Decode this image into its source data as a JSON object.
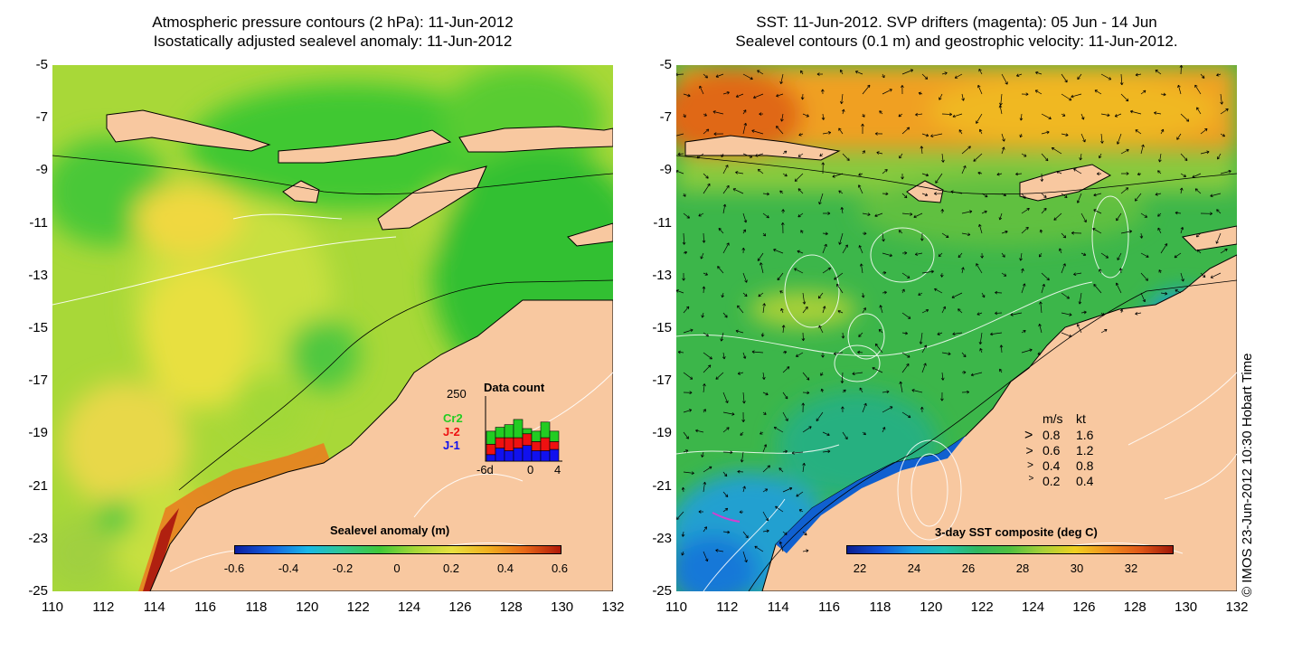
{
  "titles": {
    "left_line1": "Atmospheric pressure contours (2 hPa): 11-Jun-2012",
    "left_line2": "Isostatically adjusted sealevel anomaly: 11-Jun-2012",
    "right_line1": "SST: 11-Jun-2012. SVP drifters (magenta): 05 Jun - 14 Jun",
    "right_line2": "Sealevel contours (0.1 m) and geostrophic velocity: 11-Jun-2012."
  },
  "axes": {
    "y_ticks": [
      "-5",
      "-7",
      "-9",
      "-11",
      "-13",
      "-15",
      "-17",
      "-19",
      "-21",
      "-23",
      "-25"
    ],
    "x_ticks": [
      "110",
      "112",
      "114",
      "116",
      "118",
      "120",
      "122",
      "124",
      "126",
      "128",
      "130",
      "132"
    ],
    "lon_range": [
      110,
      132
    ],
    "lat_range": [
      -25,
      -5
    ]
  },
  "left_colorbar": {
    "title": "Sealevel anomaly (m)",
    "ticks": [
      "-0.6",
      "-0.4",
      "-0.2",
      "0",
      "0.2",
      "0.4",
      "0.6"
    ],
    "range": [
      -0.6,
      0.6
    ]
  },
  "right_colorbar": {
    "title": "3-day SST composite (deg C)",
    "ticks": [
      "22",
      "24",
      "26",
      "28",
      "30",
      "32"
    ],
    "range": [
      21.5,
      33.5
    ]
  },
  "data_count_inset": {
    "title": "Data count",
    "y_max_label": "250",
    "x_labels": [
      "-6d",
      "0",
      "4"
    ],
    "missions": [
      {
        "name": "Cr2",
        "color": "#22cc22"
      },
      {
        "name": "J-2",
        "color": "#ee1111"
      },
      {
        "name": "J-1",
        "color": "#1111ee"
      }
    ],
    "bars": [
      {
        "j1": 25,
        "j2": 40,
        "cr2": 50
      },
      {
        "j1": 50,
        "j2": 40,
        "cr2": 40
      },
      {
        "j1": 40,
        "j2": 50,
        "cr2": 50
      },
      {
        "j1": 50,
        "j2": 40,
        "cr2": 70
      },
      {
        "j1": 60,
        "j2": 45,
        "cr2": 20
      },
      {
        "j1": 40,
        "j2": 35,
        "cr2": 40
      },
      {
        "j1": 40,
        "j2": 50,
        "cr2": 60
      },
      {
        "j1": 45,
        "j2": 30,
        "cr2": 40
      }
    ]
  },
  "velocity_legend": {
    "header_ms": "m/s",
    "header_kt": "kt",
    "rows": [
      {
        "ms": "0.8",
        "kt": "1.6"
      },
      {
        "ms": "0.6",
        "kt": "1.2"
      },
      {
        "ms": "0.4",
        "kt": "0.8"
      },
      {
        "ms": "0.2",
        "kt": "0.4"
      }
    ]
  },
  "copyright": "© IMOS 23-Jun-2012 10:30 Hobart Time",
  "colors": {
    "land": "#f8c8a0",
    "contour": "#ffffff"
  }
}
